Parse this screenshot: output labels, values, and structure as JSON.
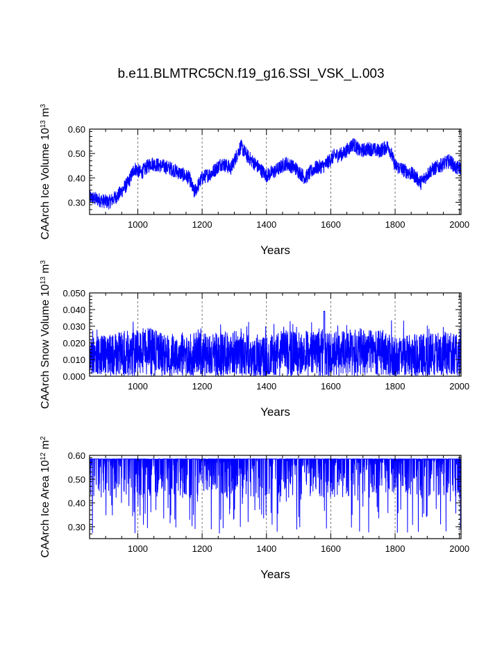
{
  "title": "b.e11.BLMTRC5CN.f19_g16.SSI_VSK_L.003",
  "colors": {
    "series": "#0000ff",
    "axis": "#000000",
    "grid": "#555555"
  },
  "chart_data": [
    {
      "type": "line",
      "name": "ice-volume",
      "xlabel": "Years",
      "ylabel": {
        "prefix": "CAArch Ice Volume 10",
        "exp": "13",
        "unit": " m",
        "unit_exp": "3"
      },
      "xlim": [
        850,
        2005
      ],
      "ylim": [
        0.25,
        0.6
      ],
      "xticks": [
        1000,
        1200,
        1400,
        1600,
        1800,
        2000
      ],
      "xticklabels": [
        "1000",
        "1200",
        "1400",
        "1600",
        "1800",
        "2000"
      ],
      "yticks": [
        0.3,
        0.4,
        0.5,
        0.6
      ],
      "yticklabels": [
        "0.30",
        "0.40",
        "0.50",
        "0.60"
      ],
      "grid": "vertical dashed at x ticks",
      "series": [
        {
          "name": "CAArch Ice Volume",
          "x": [
            850,
            880,
            910,
            940,
            970,
            990,
            1010,
            1040,
            1070,
            1100,
            1130,
            1160,
            1175,
            1200,
            1230,
            1260,
            1290,
            1320,
            1340,
            1370,
            1400,
            1430,
            1460,
            1490,
            1520,
            1550,
            1580,
            1610,
            1640,
            1670,
            1690,
            1720,
            1750,
            1780,
            1800,
            1830,
            1860,
            1880,
            1910,
            1940,
            1970,
            1990,
            2005
          ],
          "values": [
            0.32,
            0.31,
            0.3,
            0.33,
            0.38,
            0.44,
            0.42,
            0.46,
            0.45,
            0.44,
            0.42,
            0.4,
            0.34,
            0.4,
            0.42,
            0.46,
            0.44,
            0.53,
            0.49,
            0.45,
            0.41,
            0.43,
            0.46,
            0.44,
            0.4,
            0.44,
            0.45,
            0.49,
            0.5,
            0.54,
            0.51,
            0.52,
            0.51,
            0.53,
            0.45,
            0.43,
            0.41,
            0.38,
            0.43,
            0.45,
            0.47,
            0.44,
            0.44
          ],
          "noise": 0.03
        }
      ]
    },
    {
      "type": "line",
      "name": "snow-volume",
      "xlabel": "Years",
      "ylabel": {
        "prefix": "CAArch Snow Volume 10",
        "exp": "13",
        "unit": " m",
        "unit_exp": "3"
      },
      "xlim": [
        850,
        2005
      ],
      "ylim": [
        0.0,
        0.05
      ],
      "xticks": [
        1000,
        1200,
        1400,
        1600,
        1800,
        2000
      ],
      "xticklabels": [
        "1000",
        "1200",
        "1400",
        "1600",
        "1800",
        "2000"
      ],
      "yticks": [
        0.0,
        0.01,
        0.02,
        0.03,
        0.04,
        0.05
      ],
      "yticklabels": [
        "0.000",
        "0.010",
        "0.020",
        "0.030",
        "0.040",
        "0.050"
      ],
      "grid": "vertical dashed at x ticks",
      "series": [
        {
          "name": "CAArch Snow Volume",
          "x": [
            850,
            900,
            950,
            1000,
            1030,
            1060,
            1100,
            1150,
            1200,
            1250,
            1300,
            1330,
            1350,
            1400,
            1450,
            1500,
            1550,
            1580,
            1600,
            1650,
            1700,
            1750,
            1800,
            1850,
            1900,
            1950,
            2005
          ],
          "values": [
            0.012,
            0.013,
            0.015,
            0.016,
            0.019,
            0.015,
            0.014,
            0.013,
            0.015,
            0.014,
            0.016,
            0.017,
            0.011,
            0.012,
            0.016,
            0.015,
            0.016,
            0.018,
            0.015,
            0.016,
            0.017,
            0.016,
            0.012,
            0.013,
            0.014,
            0.015,
            0.013
          ],
          "max_peak": 0.039,
          "noise": 0.012
        }
      ]
    },
    {
      "type": "line",
      "name": "ice-area",
      "xlabel": "Years",
      "ylabel": {
        "prefix": "CAArch Ice Area 10",
        "exp": "12",
        "unit": " m",
        "unit_exp": "2"
      },
      "xlim": [
        850,
        2005
      ],
      "ylim": [
        0.25,
        0.6
      ],
      "xticks": [
        1000,
        1200,
        1400,
        1600,
        1800,
        2000
      ],
      "xticklabels": [
        "1000",
        "1200",
        "1400",
        "1600",
        "1800",
        "2000"
      ],
      "yticks": [
        0.3,
        0.4,
        0.5,
        0.6
      ],
      "yticklabels": [
        "0.30",
        "0.40",
        "0.50",
        "0.60"
      ],
      "grid": "vertical dashed at x ticks",
      "series": [
        {
          "name": "CAArch Ice Area",
          "x": [
            850,
            2005
          ],
          "values": [
            0.585,
            0.585
          ],
          "min": 0.27,
          "typical_low": 0.42
        }
      ]
    }
  ]
}
